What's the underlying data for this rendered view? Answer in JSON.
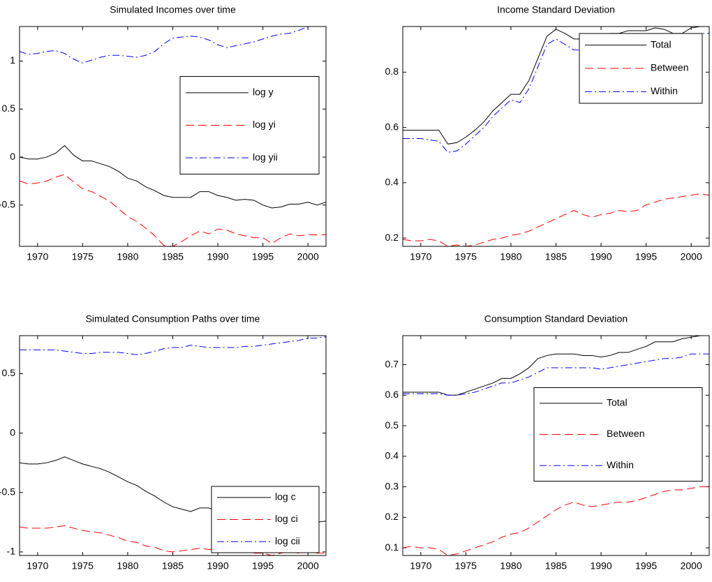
{
  "chart_data": [
    {
      "type": "line",
      "title": "Simulated Incomes over time",
      "x": [
        1968,
        1969,
        1970,
        1971,
        1972,
        1973,
        1974,
        1975,
        1976,
        1977,
        1978,
        1979,
        1980,
        1981,
        1982,
        1983,
        1984,
        1985,
        1986,
        1987,
        1988,
        1989,
        1990,
        1991,
        1992,
        1993,
        1994,
        1995,
        1996,
        1997,
        1998,
        1999,
        2000,
        2001,
        2002
      ],
      "xlim": [
        1968,
        2002
      ],
      "xticks": [
        1970,
        1975,
        1980,
        1985,
        1990,
        1995,
        2000
      ],
      "ylim": [
        -0.93,
        1.36
      ],
      "yticks": [
        -0.5,
        0,
        0.5,
        1
      ],
      "legend_loc": "east",
      "series": [
        {
          "name": "log y",
          "color": "#000000",
          "style": "solid",
          "values": [
            0.0,
            -0.02,
            -0.02,
            0.0,
            0.04,
            0.12,
            0.02,
            -0.04,
            -0.04,
            -0.07,
            -0.1,
            -0.15,
            -0.22,
            -0.25,
            -0.31,
            -0.35,
            -0.4,
            -0.42,
            -0.42,
            -0.42,
            -0.36,
            -0.36,
            -0.4,
            -0.42,
            -0.45,
            -0.44,
            -0.45,
            -0.5,
            -0.53,
            -0.52,
            -0.49,
            -0.49,
            -0.47,
            -0.5,
            -0.47
          ]
        },
        {
          "name": "log yi",
          "color": "#ff0000",
          "style": "dashed",
          "values": [
            -0.25,
            -0.28,
            -0.27,
            -0.25,
            -0.21,
            -0.18,
            -0.26,
            -0.33,
            -0.36,
            -0.41,
            -0.46,
            -0.54,
            -0.62,
            -0.67,
            -0.74,
            -0.82,
            -0.92,
            -0.93,
            -0.88,
            -0.82,
            -0.77,
            -0.8,
            -0.75,
            -0.76,
            -0.8,
            -0.82,
            -0.84,
            -0.84,
            -0.9,
            -0.84,
            -0.8,
            -0.82,
            -0.81,
            -0.81,
            -0.81
          ]
        },
        {
          "name": "log yii",
          "color": "#0000ff",
          "style": "dashdot",
          "values": [
            1.1,
            1.07,
            1.08,
            1.1,
            1.11,
            1.08,
            1.02,
            0.98,
            1.01,
            1.04,
            1.06,
            1.06,
            1.05,
            1.04,
            1.06,
            1.1,
            1.18,
            1.24,
            1.25,
            1.26,
            1.25,
            1.22,
            1.17,
            1.14,
            1.16,
            1.18,
            1.2,
            1.23,
            1.26,
            1.28,
            1.29,
            1.32,
            1.36,
            1.36,
            1.36
          ]
        }
      ]
    },
    {
      "type": "line",
      "title": "Income Standard Deviation",
      "x": [
        1968,
        1969,
        1970,
        1971,
        1972,
        1973,
        1974,
        1975,
        1976,
        1977,
        1978,
        1979,
        1980,
        1981,
        1982,
        1983,
        1984,
        1985,
        1986,
        1987,
        1988,
        1989,
        1990,
        1991,
        1992,
        1993,
        1994,
        1995,
        1996,
        1997,
        1998,
        1999,
        2000,
        2001,
        2002
      ],
      "xlim": [
        1968,
        2002
      ],
      "xticks": [
        1970,
        1975,
        1980,
        1985,
        1990,
        1995,
        2000
      ],
      "ylim": [
        0.17,
        0.965
      ],
      "yticks": [
        0.2,
        0.4,
        0.6,
        0.8
      ],
      "legend_loc": "northeast",
      "series": [
        {
          "name": "Total",
          "color": "#000000",
          "style": "solid",
          "values": [
            0.59,
            0.59,
            0.59,
            0.59,
            0.59,
            0.54,
            0.545,
            0.565,
            0.59,
            0.62,
            0.66,
            0.69,
            0.72,
            0.72,
            0.77,
            0.85,
            0.93,
            0.955,
            0.94,
            0.92,
            0.92,
            0.93,
            0.93,
            0.94,
            0.94,
            0.95,
            0.95,
            0.95,
            0.96,
            0.955,
            0.94,
            0.94,
            0.96,
            0.965,
            0.965
          ]
        },
        {
          "name": "Between",
          "color": "#ff0000",
          "style": "dashed",
          "values": [
            0.195,
            0.19,
            0.19,
            0.195,
            0.19,
            0.17,
            0.175,
            0.17,
            0.175,
            0.185,
            0.195,
            0.2,
            0.21,
            0.215,
            0.225,
            0.24,
            0.255,
            0.27,
            0.285,
            0.3,
            0.285,
            0.275,
            0.285,
            0.29,
            0.3,
            0.295,
            0.3,
            0.32,
            0.33,
            0.34,
            0.345,
            0.35,
            0.355,
            0.36,
            0.355
          ]
        },
        {
          "name": "Within",
          "color": "#0000ff",
          "style": "dashdot",
          "values": [
            0.56,
            0.56,
            0.56,
            0.555,
            0.55,
            0.51,
            0.515,
            0.54,
            0.57,
            0.6,
            0.64,
            0.67,
            0.7,
            0.69,
            0.74,
            0.82,
            0.9,
            0.92,
            0.9,
            0.88,
            0.88,
            0.89,
            0.89,
            0.9,
            0.9,
            0.91,
            0.91,
            0.91,
            0.92,
            0.92,
            0.91,
            0.91,
            0.93,
            0.94,
            0.94
          ]
        }
      ]
    },
    {
      "type": "line",
      "title": "Simulated Consumption Paths over time",
      "x": [
        1968,
        1969,
        1970,
        1971,
        1972,
        1973,
        1974,
        1975,
        1976,
        1977,
        1978,
        1979,
        1980,
        1981,
        1982,
        1983,
        1984,
        1985,
        1986,
        1987,
        1988,
        1989,
        1990,
        1991,
        1992,
        1993,
        1994,
        1995,
        1996,
        1997,
        1998,
        1999,
        2000,
        2001,
        2002
      ],
      "xlim": [
        1968,
        2002
      ],
      "xticks": [
        1970,
        1975,
        1980,
        1985,
        1990,
        1995,
        2000
      ],
      "ylim": [
        -1.03,
        0.82
      ],
      "yticks": [
        -1,
        -0.5,
        0,
        0.5
      ],
      "legend_loc": "southeast",
      "series": [
        {
          "name": "log c",
          "color": "#000000",
          "style": "solid",
          "values": [
            -0.25,
            -0.26,
            -0.26,
            -0.25,
            -0.23,
            -0.2,
            -0.23,
            -0.26,
            -0.28,
            -0.3,
            -0.33,
            -0.37,
            -0.41,
            -0.44,
            -0.49,
            -0.53,
            -0.58,
            -0.62,
            -0.64,
            -0.66,
            -0.63,
            -0.63,
            -0.66,
            -0.68,
            -0.7,
            -0.71,
            -0.72,
            -0.74,
            -0.76,
            -0.76,
            -0.75,
            -0.75,
            -0.74,
            -0.75,
            -0.74
          ]
        },
        {
          "name": "log ci",
          "color": "#ff0000",
          "style": "dashed",
          "values": [
            -0.79,
            -0.8,
            -0.8,
            -0.8,
            -0.79,
            -0.78,
            -0.8,
            -0.82,
            -0.83,
            -0.84,
            -0.86,
            -0.88,
            -0.91,
            -0.92,
            -0.95,
            -0.96,
            -0.99,
            -1.0,
            -0.99,
            -0.98,
            -0.97,
            -0.98,
            -0.98,
            -0.99,
            -1.0,
            -1.0,
            -1.01,
            -1.01,
            -1.03,
            -1.01,
            -1.0,
            -1.01,
            -1.0,
            -1.01,
            -1.01
          ]
        },
        {
          "name": "log cii",
          "color": "#0000ff",
          "style": "dashdot",
          "values": [
            0.7,
            0.7,
            0.7,
            0.7,
            0.7,
            0.69,
            0.68,
            0.67,
            0.67,
            0.68,
            0.68,
            0.68,
            0.67,
            0.66,
            0.67,
            0.69,
            0.71,
            0.72,
            0.72,
            0.74,
            0.73,
            0.72,
            0.72,
            0.72,
            0.72,
            0.73,
            0.73,
            0.74,
            0.75,
            0.76,
            0.77,
            0.78,
            0.8,
            0.8,
            0.81
          ]
        }
      ]
    },
    {
      "type": "line",
      "title": "Consumption Standard Deviation",
      "x": [
        1968,
        1969,
        1970,
        1971,
        1972,
        1973,
        1974,
        1975,
        1976,
        1977,
        1978,
        1979,
        1980,
        1981,
        1982,
        1983,
        1984,
        1985,
        1986,
        1987,
        1988,
        1989,
        1990,
        1991,
        1992,
        1993,
        1994,
        1995,
        1996,
        1997,
        1998,
        1999,
        2000,
        2001,
        2002
      ],
      "xlim": [
        1968,
        2002
      ],
      "xticks": [
        1970,
        1975,
        1980,
        1985,
        1990,
        1995,
        2000
      ],
      "ylim": [
        0.075,
        0.795
      ],
      "yticks": [
        0.1,
        0.2,
        0.3,
        0.4,
        0.5,
        0.6,
        0.7
      ],
      "legend_loc": "east",
      "series": [
        {
          "name": "Total",
          "color": "#000000",
          "style": "solid",
          "values": [
            0.61,
            0.61,
            0.61,
            0.61,
            0.61,
            0.6,
            0.6,
            0.61,
            0.62,
            0.63,
            0.64,
            0.655,
            0.655,
            0.67,
            0.69,
            0.72,
            0.73,
            0.735,
            0.735,
            0.735,
            0.73,
            0.73,
            0.725,
            0.73,
            0.74,
            0.74,
            0.75,
            0.76,
            0.775,
            0.775,
            0.775,
            0.785,
            0.79,
            0.795,
            0.795
          ]
        },
        {
          "name": "Between",
          "color": "#ff0000",
          "style": "dashed",
          "values": [
            0.1,
            0.105,
            0.1,
            0.1,
            0.095,
            0.075,
            0.08,
            0.09,
            0.1,
            0.11,
            0.12,
            0.135,
            0.145,
            0.15,
            0.165,
            0.185,
            0.205,
            0.225,
            0.24,
            0.25,
            0.24,
            0.235,
            0.24,
            0.245,
            0.25,
            0.25,
            0.255,
            0.265,
            0.275,
            0.285,
            0.29,
            0.29,
            0.295,
            0.3,
            0.3
          ]
        },
        {
          "name": "Within",
          "color": "#0000ff",
          "style": "dashdot",
          "values": [
            0.605,
            0.605,
            0.605,
            0.605,
            0.605,
            0.6,
            0.6,
            0.605,
            0.61,
            0.62,
            0.63,
            0.64,
            0.64,
            0.65,
            0.66,
            0.675,
            0.69,
            0.69,
            0.69,
            0.69,
            0.69,
            0.69,
            0.685,
            0.69,
            0.695,
            0.7,
            0.705,
            0.71,
            0.715,
            0.72,
            0.72,
            0.725,
            0.735,
            0.735,
            0.735
          ]
        }
      ]
    }
  ]
}
